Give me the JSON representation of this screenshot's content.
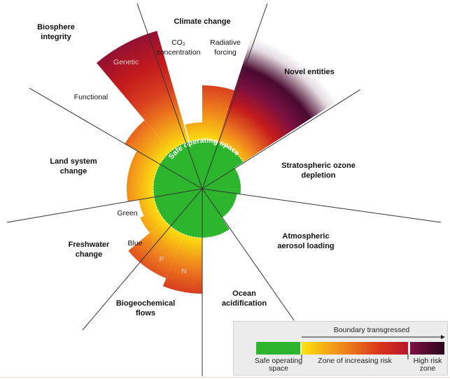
{
  "labels": {
    "climate_change": "Climate change",
    "co2": "CO₂",
    "co2_sub": "concentration",
    "radiative_1": "Radiative",
    "radiative_2": "forcing",
    "biosphere_1": "Biosphere",
    "biosphere_2": "integrity",
    "genetic": "Genetic",
    "functional": "Functional",
    "novel_entities": "Novel entities",
    "strat_1": "Stratospheric ozone",
    "strat_2": "depletion",
    "land_1": "Land system",
    "land_2": "change",
    "aerosol_1": "Atmospheric",
    "aerosol_2": "aerosol loading",
    "green": "Green",
    "blue": "Blue",
    "fresh_1": "Freshwater",
    "fresh_2": "change",
    "p": "P",
    "n": "N",
    "biogeo_1": "Biogeochemical",
    "biogeo_2": "flows",
    "ocean_1": "Ocean",
    "ocean_2": "acidification",
    "safe_space": "Safe operating space"
  },
  "legend": {
    "transgressed": "Boundary transgressed",
    "safe_1": "Safe operating",
    "safe_2": "space",
    "zone": "Zone of increasing risk",
    "high_1": "High risk",
    "high_2": "zone"
  },
  "colors": {
    "safe_green": "#2db52d",
    "yellow": "#fde30d",
    "orange": "#f28f1a",
    "red": "#c41a1c",
    "high_risk": "#5c0d3f",
    "dark": "#2a0418"
  }
}
